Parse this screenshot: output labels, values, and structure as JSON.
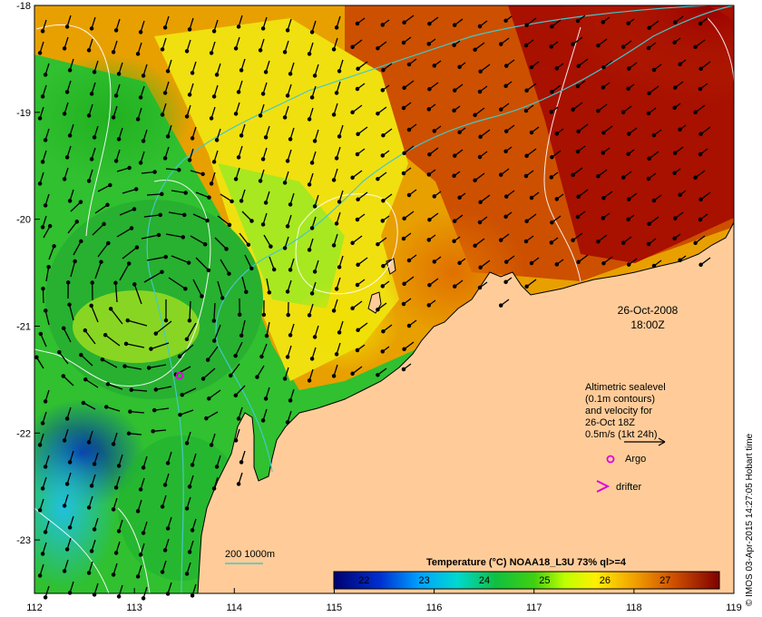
{
  "map": {
    "lon_ticks": [
      "112",
      "113",
      "114",
      "115",
      "116",
      "117",
      "118",
      "119"
    ],
    "lat_ticks": [
      "-18",
      "-19",
      "-20",
      "-21",
      "-22",
      "-23"
    ],
    "lon_range": [
      112,
      119
    ],
    "lat_range": [
      -18,
      -23.5
    ]
  },
  "timestamp": {
    "date": "26-Oct-2008",
    "time": "18:00Z"
  },
  "legend": {
    "line1": "Altimetric sealevel",
    "line2": "(0.1m contours)",
    "line3": "and velocity for",
    "line4": "26-Oct 18Z",
    "line5": "0.5m/s (1kt 24h)",
    "argo_label": "Argo",
    "drifter_label": "drifter"
  },
  "isobath_label": "200  1000m",
  "colorbar": {
    "title": "Temperature (°C) NOAA18_L3U 73% ql>=4",
    "ticks": [
      "22",
      "23",
      "24",
      "25",
      "26",
      "27"
    ],
    "range": [
      21.5,
      27.9
    ]
  },
  "credit": "© IMOS 03-Apr-2015 14:27:05 Hobart time",
  "colors": {
    "land": "#ffcc99",
    "isobath": "#44c8c8",
    "contour": "#ffffff",
    "argo": "#e000e0",
    "drifter": "#e000e0"
  }
}
